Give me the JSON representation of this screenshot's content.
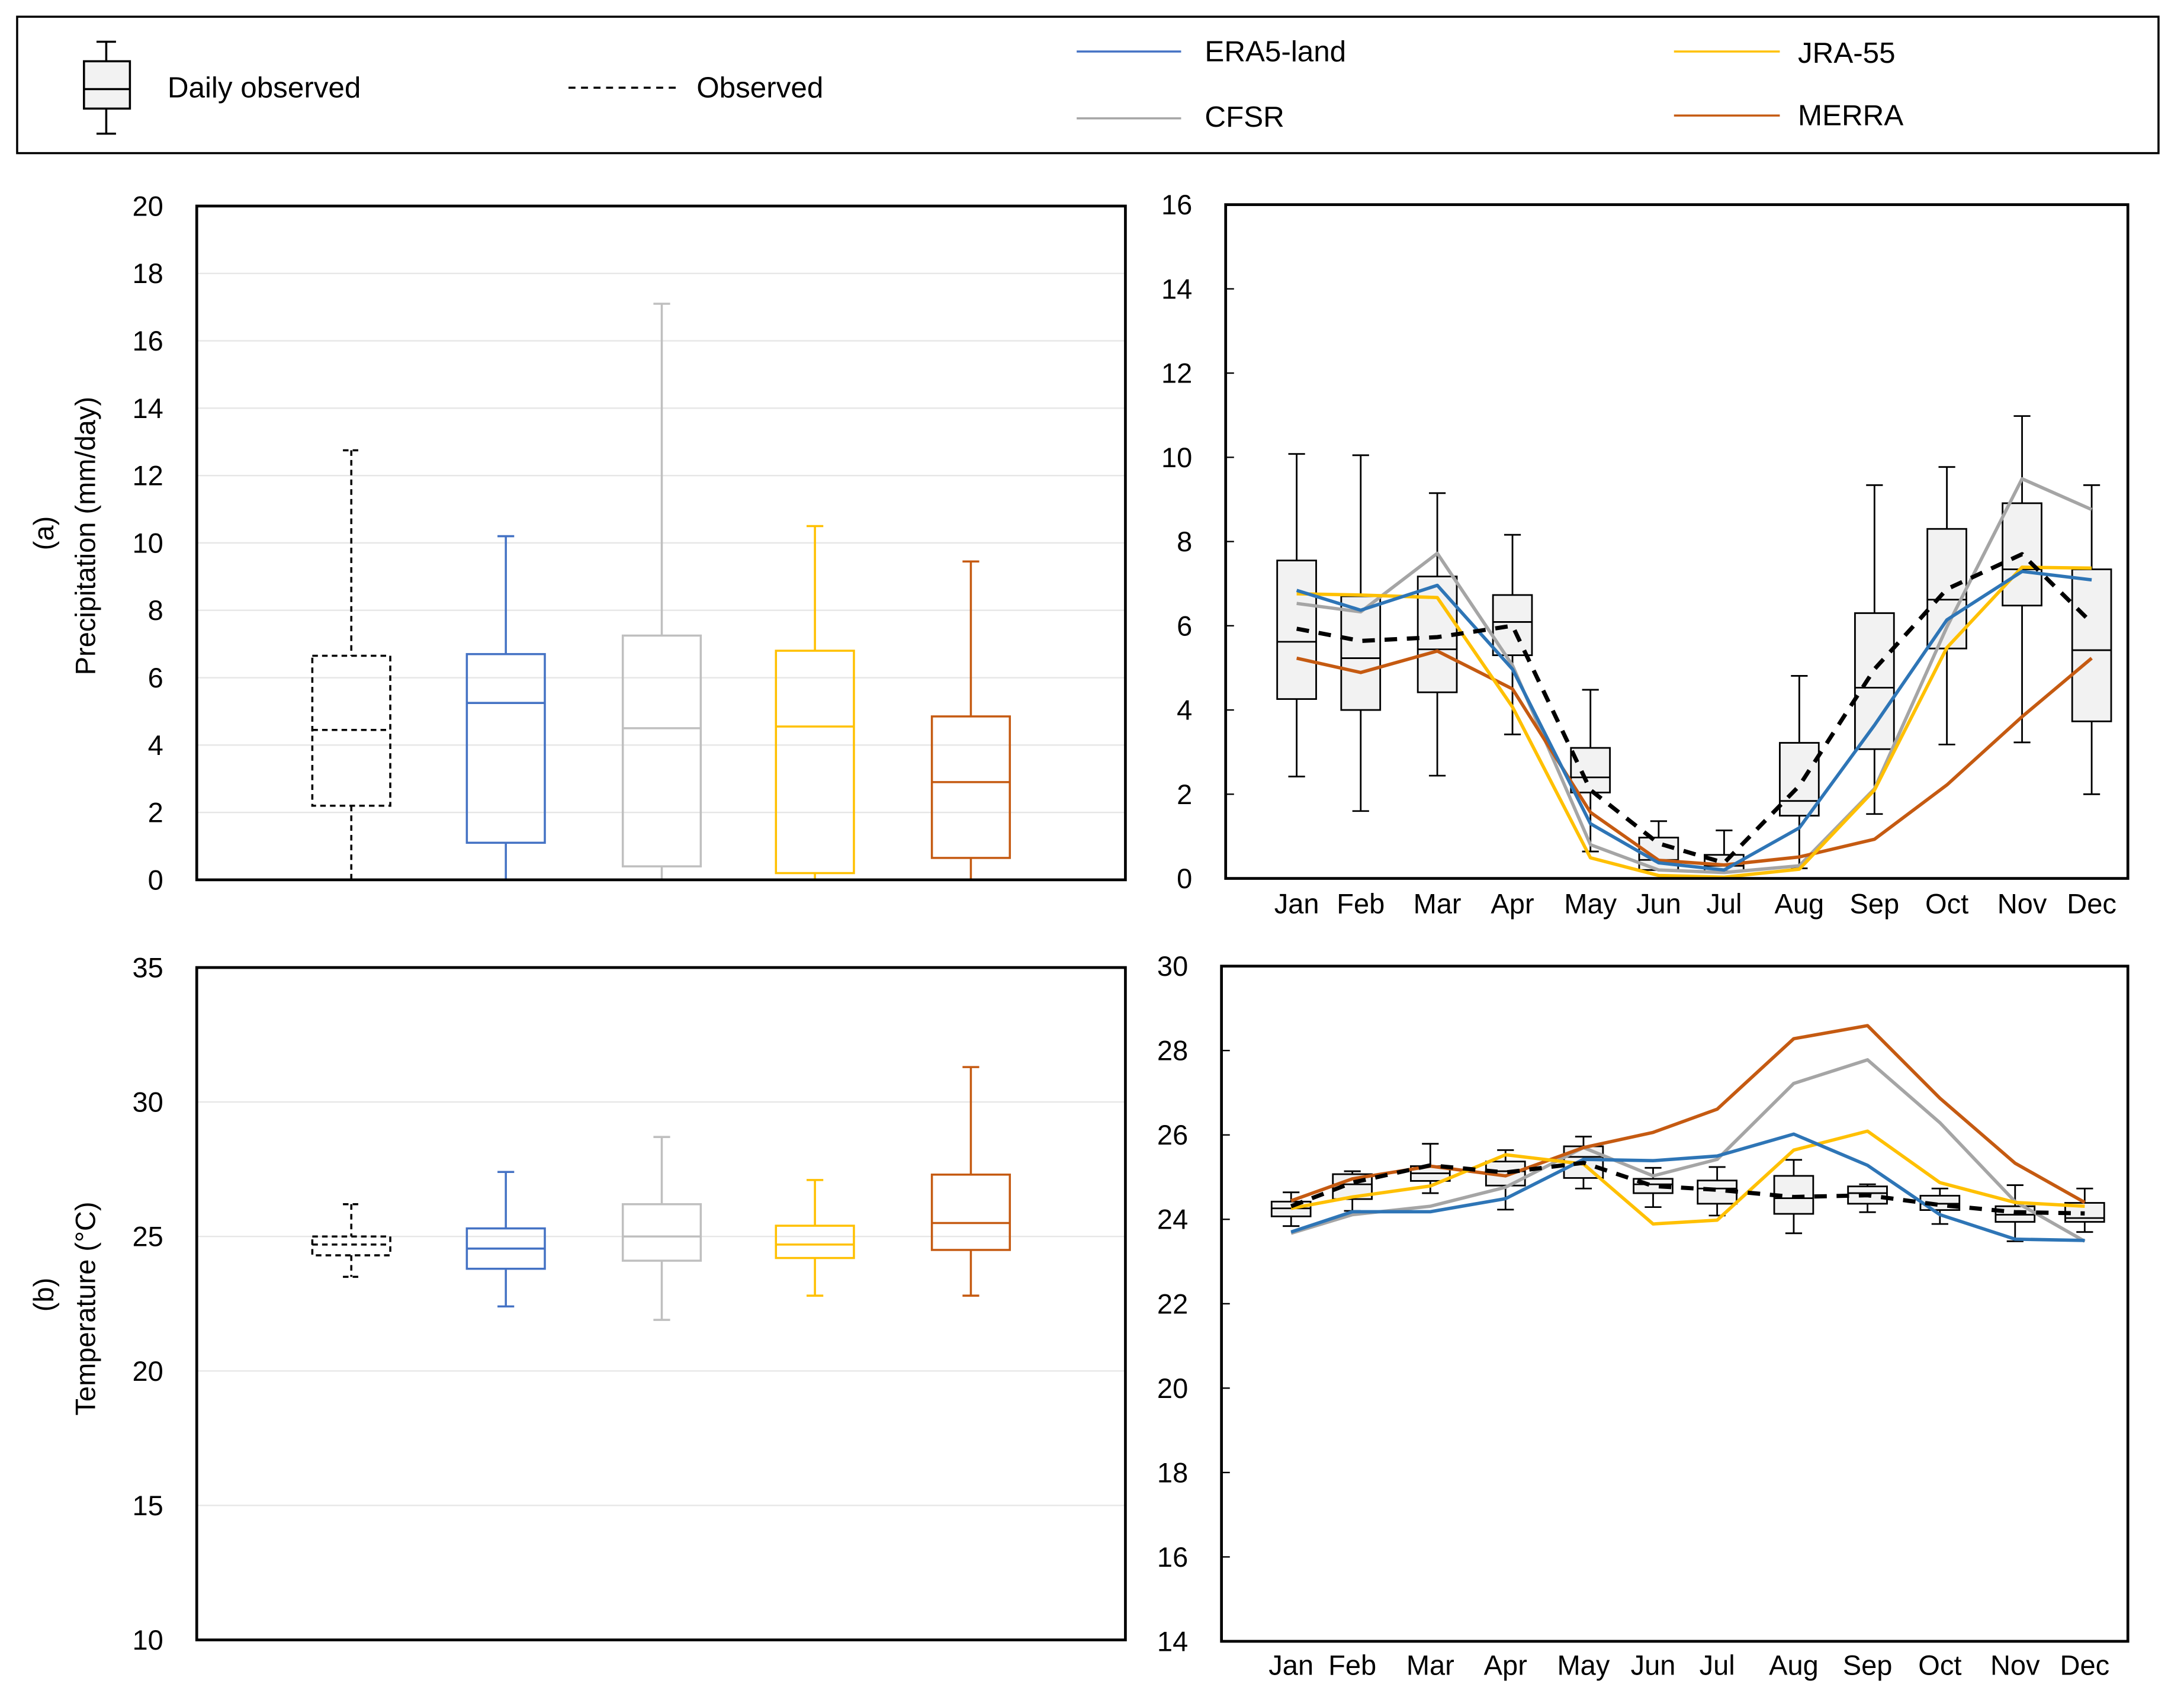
{
  "legend": {
    "daily_observed": "Daily observed",
    "observed": "Observed",
    "era5": "ERA5-land",
    "cfsr": "CFSR",
    "jra": "JRA-55",
    "merra": "MERRA"
  },
  "colors": {
    "observed": "#000000",
    "era5": "#2E75B6",
    "era5_box": "#4472C4",
    "cfsr": "#A5A5A5",
    "cfsr_box": "#BFBFBF",
    "jra": "#FFC000",
    "merra": "#C55A11",
    "box_fill": "#F2F2F2"
  },
  "labels": {
    "a_tag": "(a)",
    "a_ylabel": "Precipitation (mm/day)",
    "b_tag": "(b)",
    "b_ylabel": "Temperature (°C)"
  },
  "chart_data": [
    {
      "id": "a-left",
      "type": "box",
      "ylabel": "Precipitation (mm/day)",
      "ylim": [
        0,
        20
      ],
      "yticks": [
        0,
        2,
        4,
        6,
        8,
        10,
        12,
        14,
        16,
        18,
        20
      ],
      "grid": true,
      "series": [
        {
          "name": "Observed",
          "key": "observed",
          "min": 0,
          "q1": 2.2,
          "median": 4.45,
          "q3": 6.65,
          "max": 12.75
        },
        {
          "name": "ERA5-land",
          "key": "era5",
          "min": 0,
          "q1": 1.1,
          "median": 5.25,
          "q3": 6.7,
          "max": 10.2
        },
        {
          "name": "CFSR",
          "key": "cfsr",
          "min": 0,
          "q1": 0.4,
          "median": 4.5,
          "q3": 7.25,
          "max": 17.1
        },
        {
          "name": "JRA-55",
          "key": "jra",
          "min": 0,
          "q1": 0.2,
          "median": 4.55,
          "q3": 6.8,
          "max": 10.5
        },
        {
          "name": "MERRA",
          "key": "merra",
          "min": 0,
          "q1": 0.65,
          "median": 2.9,
          "q3": 4.85,
          "max": 9.45
        }
      ]
    },
    {
      "id": "a-right",
      "type": "line",
      "ylim": [
        0,
        16
      ],
      "yticks": [
        0,
        2,
        4,
        6,
        8,
        10,
        12,
        14,
        16
      ],
      "grid": false,
      "categories": [
        "Jan",
        "Feb",
        "Mar",
        "Apr",
        "May",
        "Jun",
        "Jul",
        "Aug",
        "Sep",
        "Oct",
        "Nov",
        "Dec"
      ],
      "daily_observed_boxes": [
        [
          2.42,
          4.26,
          5.62,
          7.55,
          10.08
        ],
        [
          1.6,
          4.0,
          5.23,
          6.7,
          10.05
        ],
        [
          2.44,
          4.42,
          5.44,
          7.17,
          9.15
        ],
        [
          3.42,
          5.3,
          6.09,
          6.73,
          8.16
        ],
        [
          0.64,
          2.04,
          2.4,
          3.1,
          4.48
        ],
        [
          0.2,
          0.2,
          0.44,
          0.97,
          1.36
        ],
        [
          0.17,
          0.17,
          0.3,
          0.56,
          1.14
        ],
        [
          0.24,
          1.49,
          1.84,
          3.22,
          4.81
        ],
        [
          1.53,
          3.07,
          4.53,
          6.3,
          9.34
        ],
        [
          3.18,
          5.46,
          6.62,
          8.3,
          9.77
        ],
        [
          3.23,
          6.48,
          7.34,
          8.91,
          10.98
        ],
        [
          2.0,
          3.73,
          5.42,
          7.34,
          9.34
        ]
      ],
      "series": [
        {
          "name": "Observed",
          "key": "observed",
          "values": [
            5.93,
            5.64,
            5.73,
            6.0,
            2.1,
            0.83,
            0.37,
            2.2,
            4.97,
            6.87,
            7.7,
            6.07
          ]
        },
        {
          "name": "ERA5-land",
          "key": "era5",
          "values": [
            6.84,
            6.37,
            6.96,
            4.97,
            1.3,
            0.37,
            0.2,
            1.2,
            3.64,
            6.14,
            7.29,
            7.09
          ]
        },
        {
          "name": "CFSR",
          "key": "cfsr",
          "values": [
            6.53,
            6.33,
            7.72,
            5.06,
            0.8,
            0.2,
            0.14,
            0.3,
            2.13,
            5.97,
            9.49,
            8.76
          ]
        },
        {
          "name": "JRA-55",
          "key": "jra",
          "values": [
            6.76,
            6.73,
            6.67,
            4.07,
            0.49,
            0.07,
            0.03,
            0.22,
            2.1,
            5.48,
            7.39,
            7.37
          ]
        },
        {
          "name": "MERRA",
          "key": "merra",
          "values": [
            5.23,
            4.89,
            5.4,
            4.5,
            1.57,
            0.43,
            0.32,
            0.51,
            0.93,
            2.22,
            3.84,
            5.23
          ]
        }
      ]
    },
    {
      "id": "b-left",
      "type": "box",
      "ylabel": "Temperature (°C)",
      "ylim": [
        10,
        35
      ],
      "yticks": [
        10,
        15,
        20,
        25,
        30,
        35
      ],
      "grid": true,
      "series": [
        {
          "name": "Observed",
          "key": "observed",
          "min": 23.5,
          "q1": 24.3,
          "median": 24.7,
          "q3": 25.0,
          "max": 26.2
        },
        {
          "name": "ERA5-land",
          "key": "era5",
          "min": 22.4,
          "q1": 23.8,
          "median": 24.55,
          "q3": 25.3,
          "max": 27.4
        },
        {
          "name": "CFSR",
          "key": "cfsr",
          "min": 21.9,
          "q1": 24.1,
          "median": 25.0,
          "q3": 26.2,
          "max": 28.7
        },
        {
          "name": "JRA-55",
          "key": "jra",
          "min": 22.8,
          "q1": 24.2,
          "median": 24.7,
          "q3": 25.4,
          "max": 27.1
        },
        {
          "name": "MERRA",
          "key": "merra",
          "min": 22.8,
          "q1": 24.5,
          "median": 25.5,
          "q3": 27.3,
          "max": 31.3
        }
      ]
    },
    {
      "id": "b-right",
      "type": "line",
      "ylim": [
        14,
        30
      ],
      "yticks": [
        14,
        16,
        18,
        20,
        22,
        24,
        26,
        28,
        30
      ],
      "grid": false,
      "categories": [
        "Jan",
        "Feb",
        "Mar",
        "Apr",
        "May",
        "Jun",
        "Jul",
        "Aug",
        "Sep",
        "Oct",
        "Nov",
        "Dec"
      ],
      "daily_observed_boxes": [
        [
          23.84,
          24.07,
          24.26,
          24.42,
          24.64
        ],
        [
          24.2,
          24.48,
          24.83,
          25.07,
          25.14
        ],
        [
          24.62,
          24.91,
          25.09,
          25.26,
          25.79
        ],
        [
          24.23,
          24.8,
          25.14,
          25.37,
          25.64
        ],
        [
          24.73,
          24.98,
          25.48,
          25.73,
          25.96
        ],
        [
          24.29,
          24.62,
          24.83,
          24.96,
          25.22
        ],
        [
          24.09,
          24.37,
          24.73,
          24.92,
          25.24
        ],
        [
          23.67,
          24.13,
          24.5,
          25.03,
          25.41
        ],
        [
          24.17,
          24.37,
          24.62,
          24.78,
          24.83
        ],
        [
          23.89,
          24.22,
          24.37,
          24.56,
          24.73
        ],
        [
          23.48,
          23.94,
          24.11,
          24.31,
          24.81
        ],
        [
          23.7,
          23.94,
          24.03,
          24.39,
          24.73
        ]
      ],
      "series": [
        {
          "name": "Observed",
          "key": "observed",
          "values": [
            24.31,
            24.87,
            25.28,
            25.11,
            25.34,
            24.79,
            24.7,
            24.53,
            24.57,
            24.34,
            24.17,
            24.14
          ]
        },
        {
          "name": "ERA5-land",
          "key": "era5",
          "values": [
            23.7,
            24.18,
            24.18,
            24.49,
            25.42,
            25.39,
            25.5,
            26.02,
            25.28,
            24.11,
            23.53,
            23.5
          ]
        },
        {
          "name": "CFSR",
          "key": "cfsr",
          "values": [
            23.67,
            24.11,
            24.31,
            24.76,
            25.7,
            25.03,
            25.42,
            27.22,
            27.78,
            26.29,
            24.42,
            23.48
          ]
        },
        {
          "name": "JRA-55",
          "key": "jra",
          "values": [
            24.26,
            24.53,
            24.79,
            25.53,
            25.31,
            23.89,
            23.98,
            25.64,
            26.09,
            24.87,
            24.4,
            24.31
          ]
        },
        {
          "name": "MERRA",
          "key": "merra",
          "values": [
            24.44,
            24.96,
            25.26,
            25.03,
            25.7,
            26.06,
            26.61,
            28.28,
            28.59,
            26.87,
            25.33,
            24.4
          ]
        }
      ]
    }
  ]
}
